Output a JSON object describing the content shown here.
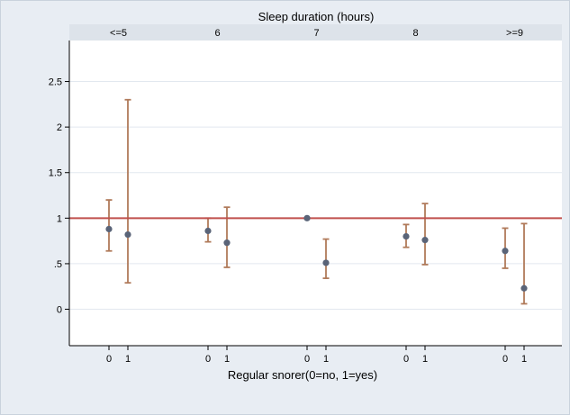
{
  "chart_data": {
    "type": "scatter",
    "subtype": "point-estimate with confidence interval error bars, faceted by sleep duration",
    "facet_title": "Sleep duration (hours)",
    "facets": [
      "<=5",
      "6",
      "7",
      "8",
      ">=9"
    ],
    "x_tick_labels": [
      "0",
      "1"
    ],
    "xlabel": "Regular snorer(0=no, 1=yes)",
    "ylabel": "",
    "ylim": [
      -0.4,
      2.95
    ],
    "y_ticks": [
      0,
      0.5,
      1,
      1.5,
      2,
      2.5
    ],
    "y_tick_labels": [
      "0",
      ".5",
      "1",
      "1.5",
      "2",
      "2.5"
    ],
    "reference_line": 1,
    "grid": true,
    "points": [
      {
        "facet": "<=5",
        "x": "0",
        "estimate": 0.88,
        "lower": 0.64,
        "upper": 1.2
      },
      {
        "facet": "<=5",
        "x": "1",
        "estimate": 0.82,
        "lower": 0.29,
        "upper": 2.3
      },
      {
        "facet": "6",
        "x": "0",
        "estimate": 0.86,
        "lower": 0.74,
        "upper": 1.0
      },
      {
        "facet": "6",
        "x": "1",
        "estimate": 0.73,
        "lower": 0.46,
        "upper": 1.12
      },
      {
        "facet": "7",
        "x": "0",
        "estimate": 1.0,
        "lower": 1.0,
        "upper": 1.0
      },
      {
        "facet": "7",
        "x": "1",
        "estimate": 0.51,
        "lower": 0.34,
        "upper": 0.77
      },
      {
        "facet": "8",
        "x": "0",
        "estimate": 0.8,
        "lower": 0.68,
        "upper": 0.93
      },
      {
        "facet": "8",
        "x": "1",
        "estimate": 0.76,
        "lower": 0.49,
        "upper": 1.16
      },
      {
        "facet": ">=9",
        "x": "0",
        "estimate": 0.64,
        "lower": 0.45,
        "upper": 0.89
      },
      {
        "facet": ">=9",
        "x": "1",
        "estimate": 0.23,
        "lower": 0.06,
        "upper": 0.94
      }
    ],
    "colors": {
      "background": "#e8edf3",
      "plot_area": "#ffffff",
      "facet_strip": "#dde3ea",
      "grid": "#e2e8ef",
      "error_bar": "#b07a5a",
      "point": "#5a6478",
      "reference_line": "#c0504d"
    }
  }
}
